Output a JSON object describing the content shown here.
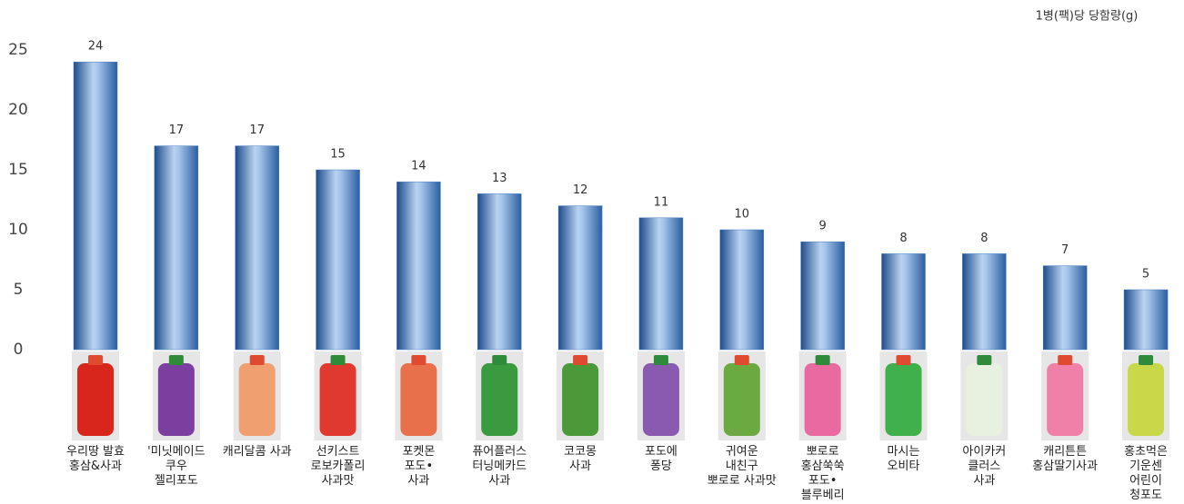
{
  "chart_data": {
    "type": "bar",
    "title": "1병(팩)당 당함량(g)",
    "categories": [
      "우리땅 발효\n홍삼&사과",
      "'미닛메이드\n쿠우\n젤리포도",
      "캐리달콤 사과",
      "선키스트\n로보카폴리\n사과맛",
      "포켓몬\n포도•\n사과",
      "퓨어플러스\n터닝메카드\n사과",
      "코코몽\n사과",
      "포도에\n퐁당",
      "귀여운\n내친구\n뽀로로 사과맛",
      "뽀로로\n홍삼쑥쑥\n포도•\n블루베리",
      "마시는\n오비타",
      "아이카커\n클러스\n사과",
      "캐리튼튼\n홍삼딸기사과",
      "홍초먹은\n기운센\n어린이\n청포도"
    ],
    "values": [
      24,
      17,
      17,
      15,
      14,
      13,
      12,
      11,
      10,
      9,
      8,
      8,
      7,
      5
    ],
    "color": "#4a7fc0",
    "ylim": [
      0,
      25
    ],
    "yticks": [
      0,
      5,
      10,
      15,
      20,
      25
    ],
    "grid": false
  }
}
